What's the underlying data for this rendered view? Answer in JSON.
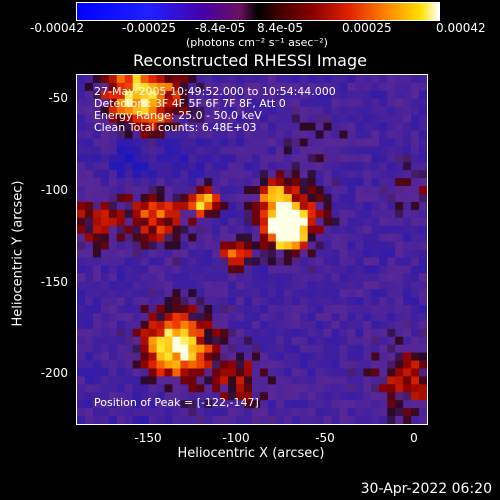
{
  "colorbar": {
    "tick_labels": [
      "-0.00042",
      "-0.00025",
      "-8.4e-05",
      "8.4e-05",
      "0.00025",
      "0.00042"
    ],
    "unit_label": "(photons cm⁻² s⁻¹ asec⁻²)"
  },
  "plot": {
    "title": "Reconstructed RHESSI Image",
    "info_lines": [
      "27-May-2005 10:49:52.000 to 10:54:44.000",
      "Detectors: 3F 4F 5F 6F 7F 8F, Att 0",
      "Energy Range: 25.0 - 50.0 keV",
      "Clean     Total counts: 6.48E+03"
    ],
    "peak_text": "Position of Peak = [-122,-147]",
    "xlabel": "Heliocentric X (arcsec)",
    "ylabel": "Heliocentric Y (arcsec)",
    "x_ticks": [
      "-150",
      "-100",
      "-50",
      "0"
    ],
    "y_ticks": [
      "-50",
      "-100",
      "-150",
      "-200"
    ]
  },
  "footer": {
    "timestamp": "30-Apr-2022 06:20"
  },
  "colors": {
    "background": "#000000",
    "text": "#ffffff"
  }
}
